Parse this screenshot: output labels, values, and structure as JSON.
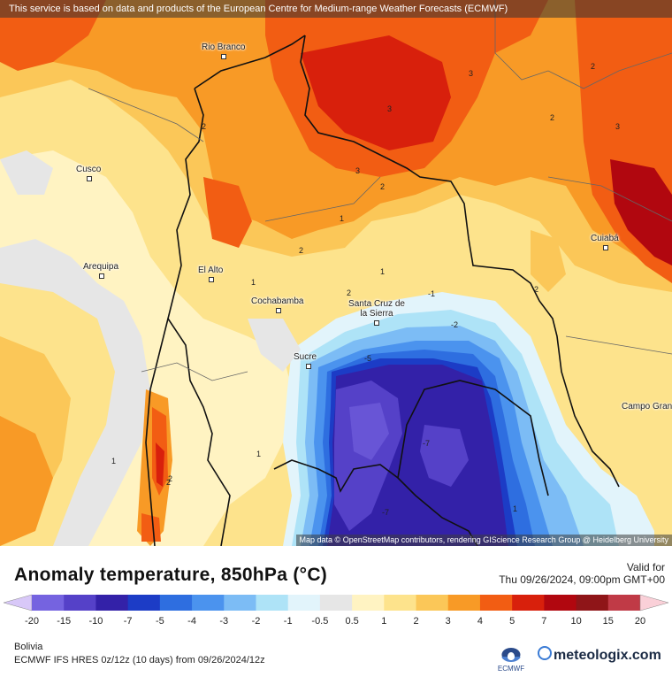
{
  "header": {
    "notice": "This service is based on data and products of the European Centre for Medium-range Weather Forecasts (ECMWF)"
  },
  "map": {
    "attribution": "Map data © OpenStreetMap contributors, rendering GIScience Research Group @ Heidelberg University",
    "cities": [
      {
        "name": "Rio Branco"
      },
      {
        "name": "Cusco"
      },
      {
        "name": "Arequipa"
      },
      {
        "name": "El Alto"
      },
      {
        "name": "Cochabamba"
      },
      {
        "name": "Santa Cruz de la Sierra"
      },
      {
        "name": "Sucre"
      },
      {
        "name": "Cuiabá"
      },
      {
        "name": "Campo Grande"
      }
    ],
    "contour_labels": [
      "2",
      "3",
      "2",
      "3",
      "2",
      "3",
      "3",
      "2",
      "2",
      "2",
      "1",
      "2",
      "1",
      "1",
      "2",
      "1",
      "-1",
      "-2",
      "-5",
      "-7",
      "-7",
      "2",
      "1",
      "1"
    ]
  },
  "legend": {
    "title": "Anomaly temperature, 850hPa (°C)",
    "valid_label": "Valid for",
    "valid_time": "Thu 09/26/2024, 09:00pm GMT+00",
    "ticks": [
      "-20",
      "-15",
      "-10",
      "-7",
      "-5",
      "-4",
      "-3",
      "-2",
      "-1",
      "-0.5",
      "0.5",
      "1",
      "2",
      "3",
      "4",
      "5",
      "7",
      "10",
      "15",
      "20"
    ],
    "colors": [
      "#9b8cf0",
      "#7563e0",
      "#5541c8",
      "#3321a8",
      "#1c3cc6",
      "#2e6ee0",
      "#4b93ee",
      "#7cbcf5",
      "#aee3f7",
      "#e2f4fb",
      "#e6e6e6",
      "#fff3c2",
      "#fde38c",
      "#fbc758",
      "#f89a26",
      "#f25d13",
      "#d8200c",
      "#b1070f",
      "#8f1518",
      "#c03a46",
      "#e05d6c",
      "#f29aa4"
    ]
  },
  "footer": {
    "region": "Bolivia",
    "model": "ECMWF IFS HRES 0z/12z (10 days) from 09/26/2024/12z",
    "ecmwf_label": "ECMWF",
    "brand": "meteologix.com"
  }
}
